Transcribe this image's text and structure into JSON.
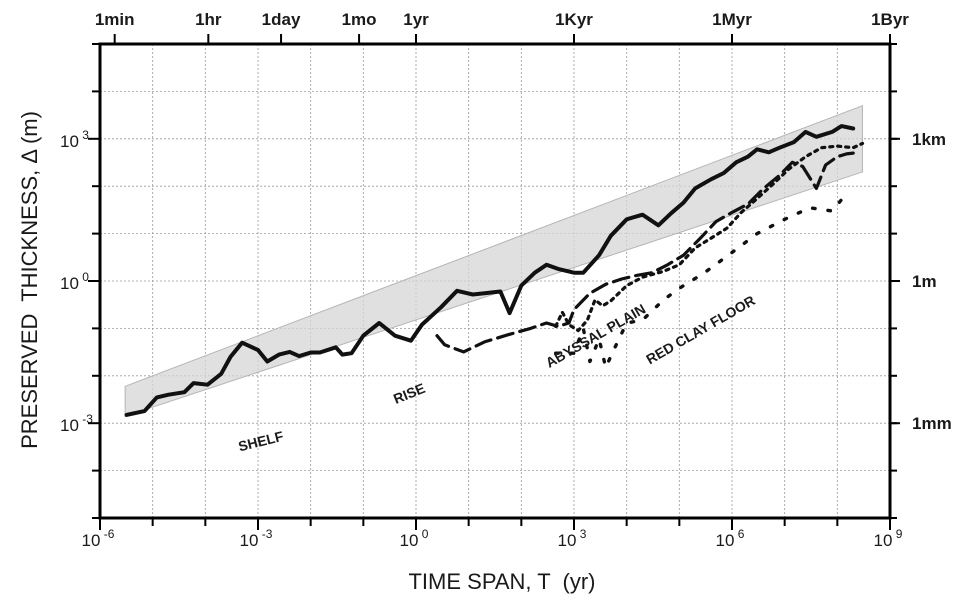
{
  "chart_data": {
    "type": "line",
    "title": "",
    "xlabel": "TIME SPAN, T  (yr)",
    "ylabel": "PRESERVED  THICKNESS, Δ (m)",
    "x_scale": "log",
    "y_scale": "log",
    "xlim": [
      1e-06,
      1000000000.0
    ],
    "ylim": [
      1e-05,
      100000.0
    ],
    "grid": true,
    "x_ticks": [
      {
        "base": "10",
        "exp": "-6"
      },
      {
        "base": "10",
        "exp": "-3"
      },
      {
        "base": "10",
        "exp": "0"
      },
      {
        "base": "10",
        "exp": "3"
      },
      {
        "base": "10",
        "exp": "6"
      },
      {
        "base": "10",
        "exp": "9"
      }
    ],
    "y_ticks": [
      {
        "base": "10",
        "exp": "-3"
      },
      {
        "base": "10",
        "exp": "0"
      },
      {
        "base": "10",
        "exp": "3"
      }
    ],
    "top_ticks": [
      "1min",
      "1hr",
      "1day",
      "1mo",
      "1yr",
      "1Kyr",
      "1Myr",
      "1Byr"
    ],
    "right_ticks": [
      "1km",
      "1m",
      "1mm"
    ],
    "annotations": [
      "SHELF",
      "RISE",
      "ABYSSAL PLAIN",
      "RED CLAY FLOOR"
    ],
    "band": {
      "x": [
        3e-06,
        300000000.0
      ],
      "y_lower": [
        0.0014,
        200
      ],
      "y_upper": [
        0.006,
        5000
      ]
    },
    "series": [
      {
        "name": "SHELF",
        "line": "solid",
        "x": [
          3.2e-06,
          7e-06,
          1.2e-05,
          2e-05,
          4e-05,
          6e-05,
          0.00011,
          0.0002,
          0.0003,
          0.0005,
          0.001,
          0.0015,
          0.0025,
          0.004,
          0.006,
          0.01,
          0.015,
          0.03,
          0.04,
          0.06,
          0.1,
          0.2,
          0.4,
          0.8,
          1.3,
          3,
          6,
          12.0,
          20.0,
          40.0,
          60.0,
          100.0,
          180.0,
          300.0,
          500.0,
          1000.0,
          1500.0,
          3000.0,
          5000.0,
          10000.0,
          20000.0,
          40000.0,
          70000.0,
          120000.0,
          200000.0,
          400000.0,
          700000.0,
          1200000.0,
          2000000.0,
          3000000.0,
          5000000.0,
          8000000.0,
          15000000.0,
          25000000.0,
          40000000.0,
          80000000.0,
          120000000.0,
          200000000.0
        ],
        "y": [
          0.0015,
          0.0018,
          0.0035,
          0.004,
          0.0045,
          0.007,
          0.0065,
          0.011,
          0.025,
          0.05,
          0.035,
          0.02,
          0.028,
          0.032,
          0.026,
          0.031,
          0.031,
          0.04,
          0.028,
          0.03,
          0.07,
          0.13,
          0.07,
          0.055,
          0.12,
          0.28,
          0.62,
          0.52,
          0.55,
          0.6,
          0.21,
          0.8,
          1.5,
          2.2,
          1.8,
          1.5,
          1.5,
          3.5,
          9,
          20,
          25,
          15,
          27,
          45,
          90,
          140,
          190,
          320,
          420,
          600,
          520,
          650,
          850,
          1400,
          1100,
          1400,
          1850,
          1650
        ]
      },
      {
        "name": "RISE",
        "line": "dashed",
        "x": [
          2.5,
          3.5,
          8,
          20,
          60,
          150,
          300,
          500,
          800,
          1000.0,
          2000.0,
          4000.0,
          8000.0,
          15000.0,
          30000.0,
          60000.0,
          120000.0,
          250000.0,
          500000.0,
          1000000.0,
          2000000.0,
          4000000.0,
          8000000.0,
          14000000.0,
          22000000.0,
          40000000.0,
          60000000.0,
          100000000.0,
          150000000.0,
          200000000.0
        ],
        "y": [
          0.07,
          0.045,
          0.032,
          0.052,
          0.075,
          0.1,
          0.13,
          0.11,
          0.13,
          0.25,
          0.55,
          0.85,
          1.1,
          1.3,
          1.5,
          2.2,
          3.5,
          8,
          18,
          28,
          42,
          90,
          170,
          320,
          260,
          90,
          280,
          420,
          480,
          500
        ]
      },
      {
        "name": "ABYSSAL PLAIN",
        "line": "dotted",
        "x": [
          450,
          600,
          800,
          1200.0,
          1800.0,
          2500.0,
          3500.0,
          5000.0,
          10000.0,
          20000.0,
          50000.0,
          100000.0,
          200000.0,
          400000.0,
          800000.0,
          1500000.0,
          3000000.0,
          6000000.0,
          12000000.0,
          25000000.0,
          50000000.0,
          100000000.0,
          200000000.0,
          300000000.0
        ],
        "y": [
          0.11,
          0.22,
          0.12,
          0.09,
          0.15,
          0.4,
          0.3,
          0.38,
          0.8,
          1.2,
          1.6,
          2.2,
          5,
          8,
          13,
          28,
          55,
          110,
          230,
          420,
          650,
          700,
          650,
          800
        ]
      },
      {
        "name": "RED CLAY FLOOR",
        "line": "dotted",
        "x": [
          450,
          1000.0,
          1500.0,
          2000.0,
          3000.0,
          4000.0,
          6000.0,
          10000.0,
          20000.0,
          50000.0,
          100000.0,
          300000.0,
          1000000.0,
          3000000.0,
          10000000.0,
          30000000.0,
          80000000.0,
          150000000.0
        ],
        "y": [
          0.03,
          0.03,
          0.1,
          0.02,
          0.06,
          0.015,
          0.04,
          0.13,
          0.15,
          0.4,
          0.7,
          1.5,
          4,
          10,
          20,
          35,
          30,
          70
        ]
      }
    ]
  }
}
